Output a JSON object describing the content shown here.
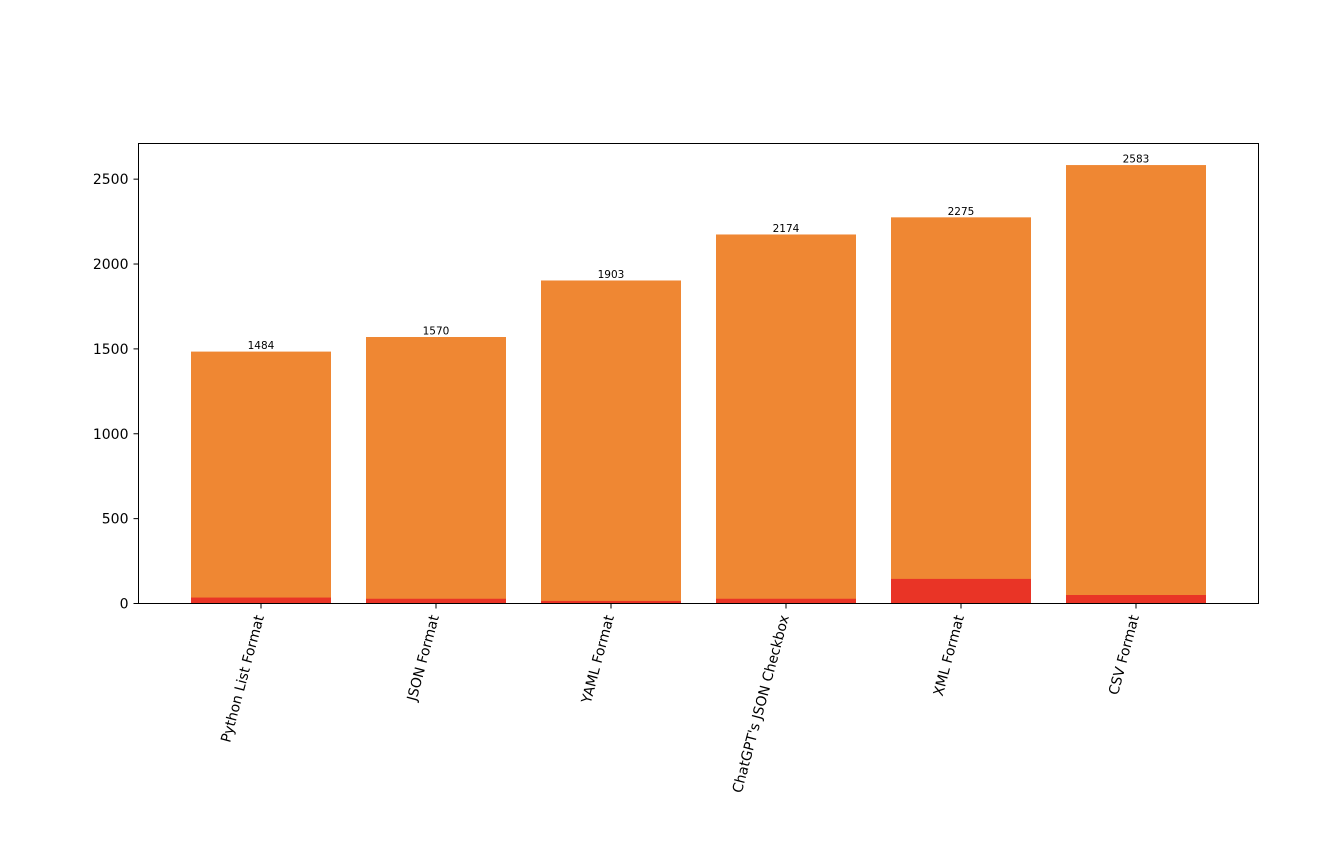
{
  "chart_data": {
    "type": "bar",
    "categories": [
      "Python List Format",
      "JSON Format",
      "YAML Format",
      "ChatGPT's JSON Checkbox",
      "XML Format",
      "CSV Format"
    ],
    "series": [
      {
        "values": [
          1484,
          1570,
          1903,
          2174,
          2275,
          2583
        ],
        "color": "#ef8733"
      },
      {
        "values": [
          35,
          28,
          15,
          28,
          145,
          50
        ],
        "color": "#e93426"
      }
    ],
    "data_labels": [
      "1484",
      "1570",
      "1903",
      "2174",
      "2275",
      "2583"
    ],
    "ylim": [
      0,
      2710
    ],
    "yticks": [
      0,
      500,
      1000,
      1500,
      2000,
      2500
    ],
    "ytick_labels": [
      "0",
      "500",
      "1000",
      "1500",
      "2000",
      "2500"
    ],
    "xtick_rotation": -75,
    "grid": false,
    "legend": "none"
  }
}
